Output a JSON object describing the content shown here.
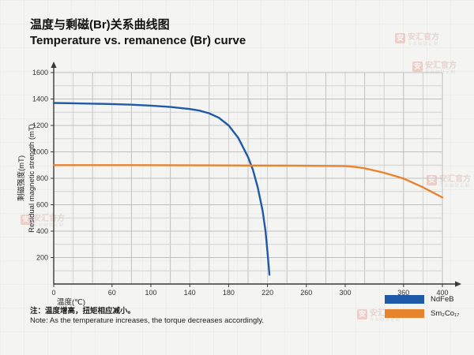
{
  "title": {
    "zh": "温度与剩磁(Br)关系曲线图",
    "en": "Temperature vs. remanence (Br) curve"
  },
  "note": {
    "zh": "注：温度增高，扭矩相应减小。",
    "en": "Note: As the temperature increases, the torque decreases accordingly."
  },
  "legend": [
    {
      "label": "NdFeB",
      "color": "#1f5aa8"
    },
    {
      "label": "Sm₂Co₁₇",
      "color": "#e8842f"
    }
  ],
  "watermark": {
    "icon_char": "安",
    "main": "安汇官方",
    "sub": "专业磁铁定制"
  },
  "chart_data": {
    "type": "line",
    "title": "温度与剩磁(Br)关系曲线图 / Temperature vs. remanence (Br) curve",
    "xlabel": "温度(℃)",
    "ylabel_zh": "剩磁强度(mT)",
    "ylabel_en": "Residual magnetic strength (mT)",
    "xlim": [
      0,
      400
    ],
    "ylim": [
      0,
      1600
    ],
    "x_tick_labels": [
      0,
      60,
      100,
      140,
      180,
      220,
      260,
      300,
      360,
      400
    ],
    "y_tick_labels": [
      200,
      400,
      600,
      800,
      1000,
      1200,
      1400,
      1600
    ],
    "x_minor_step": 20,
    "y_minor_step": 100,
    "grid": true,
    "legend_position": "bottom-right",
    "series": [
      {
        "name": "NdFeB",
        "color": "#1f5aa8",
        "points": [
          [
            0,
            1370
          ],
          [
            20,
            1368
          ],
          [
            40,
            1365
          ],
          [
            60,
            1362
          ],
          [
            80,
            1357
          ],
          [
            100,
            1350
          ],
          [
            120,
            1340
          ],
          [
            140,
            1324
          ],
          [
            150,
            1312
          ],
          [
            160,
            1292
          ],
          [
            170,
            1258
          ],
          [
            180,
            1200
          ],
          [
            190,
            1105
          ],
          [
            200,
            960
          ],
          [
            205,
            865
          ],
          [
            210,
            730
          ],
          [
            215,
            555
          ],
          [
            218,
            400
          ],
          [
            220,
            240
          ],
          [
            222,
            70
          ]
        ]
      },
      {
        "name": "Sm₂Co₁₇",
        "color": "#e8842f",
        "points": [
          [
            0,
            900
          ],
          [
            40,
            900
          ],
          [
            80,
            900
          ],
          [
            120,
            899
          ],
          [
            160,
            898
          ],
          [
            200,
            897
          ],
          [
            240,
            896
          ],
          [
            280,
            894
          ],
          [
            300,
            892
          ],
          [
            310,
            886
          ],
          [
            320,
            876
          ],
          [
            340,
            842
          ],
          [
            360,
            798
          ],
          [
            380,
            732
          ],
          [
            400,
            655
          ]
        ]
      }
    ]
  }
}
